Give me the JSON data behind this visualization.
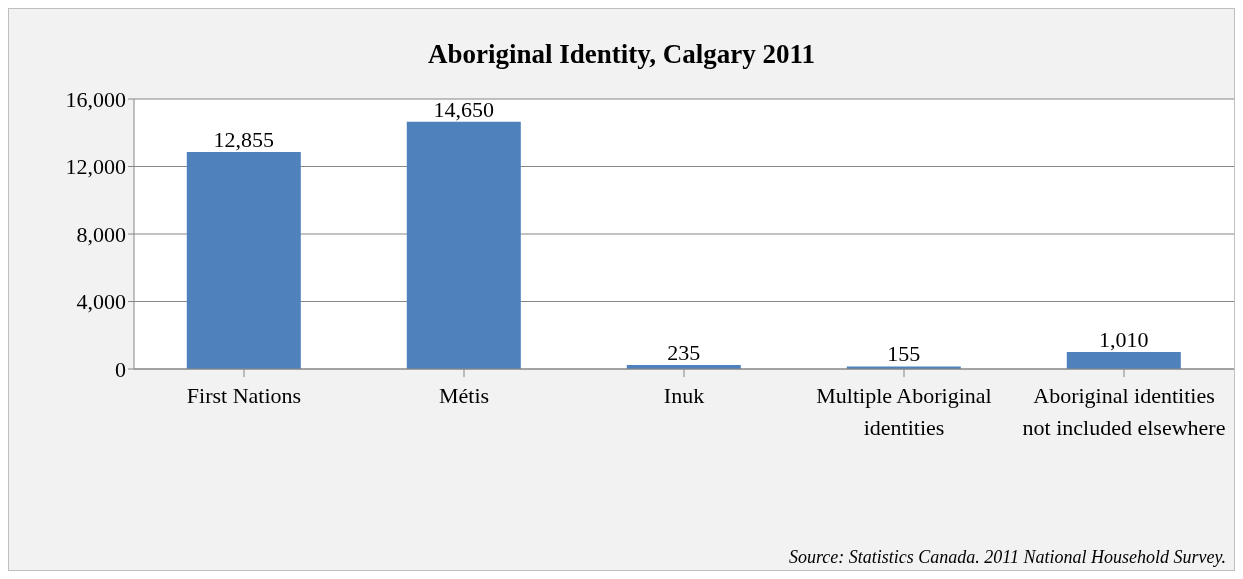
{
  "chart_data": {
    "type": "bar",
    "title": "Aboriginal Identity, Calgary 2011",
    "categories": [
      "First Nations",
      "Métis",
      "Inuk",
      "Multiple Aboriginal identities",
      "Aboriginal identities not included elsewhere"
    ],
    "values": [
      12855,
      14650,
      235,
      155,
      1010
    ],
    "value_labels": [
      "12,855",
      "14,650",
      "235",
      "155",
      "1,010"
    ],
    "color": "#4f81bd",
    "ylim": [
      0,
      16000
    ],
    "yticks": [
      {
        "value": 0,
        "label": "0"
      },
      {
        "value": 4000,
        "label": "4,000"
      },
      {
        "value": 8000,
        "label": "8,000"
      },
      {
        "value": 12000,
        "label": "12,000"
      },
      {
        "value": 16000,
        "label": "16,000"
      }
    ],
    "grid": "y",
    "annotations": [
      "Source: Statistics Canada. 2011 National Household Survey."
    ]
  }
}
